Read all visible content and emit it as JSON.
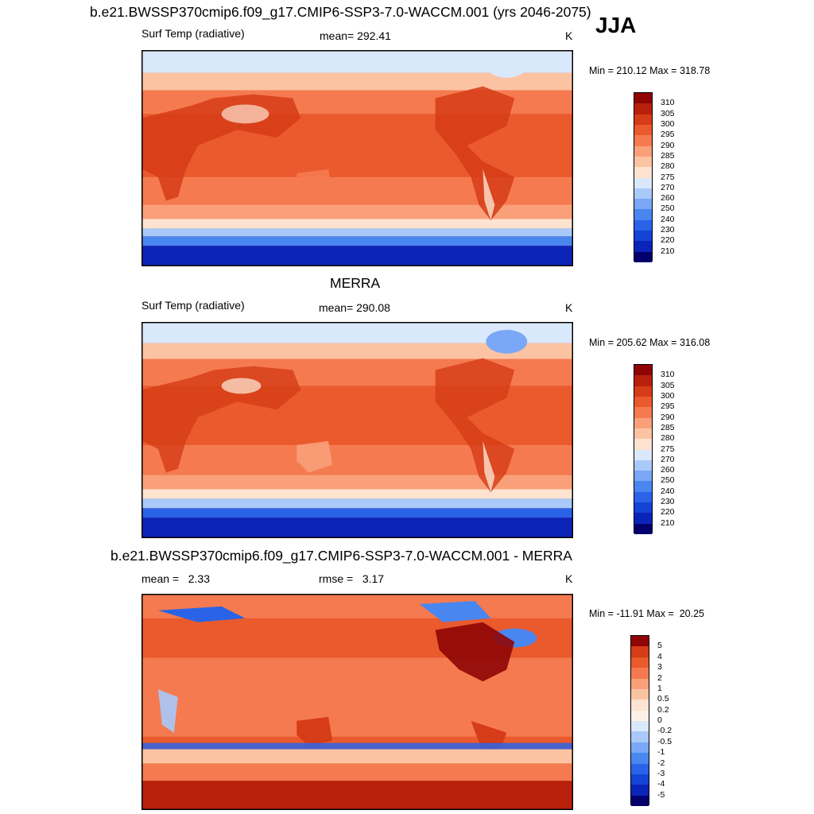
{
  "figure": {
    "season": "JJA",
    "title_top": "b.e21.BWSSP370cmip6.f09_g17.CMIP6-SSP3-7.0-WACCM.001 (yrs 2046-2075)",
    "title_mid": "MERRA",
    "title_bot": "b.e21.BWSSP370cmip6.f09_g17.CMIP6-SSP3-7.0-WACCM.001 - MERRA"
  },
  "chart_data": [
    {
      "type": "heatmap",
      "id": "model",
      "variable": "Surf Temp (radiative)",
      "mean_text": "mean= 292.41",
      "units": "K",
      "minmax_text": "Min = 210.12 Max = 318.78",
      "levels": [
        "210",
        "220",
        "230",
        "240",
        "250",
        "260",
        "270",
        "275",
        "280",
        "285",
        "290",
        "295",
        "300",
        "305",
        "310"
      ],
      "colors": [
        "#03006e",
        "#0b24b8",
        "#1443d6",
        "#2a63e8",
        "#4a86f0",
        "#7aa8f6",
        "#a9c9fa",
        "#d9e8fb",
        "#fde3d0",
        "#fcc3a3",
        "#f9a07a",
        "#f57a4f",
        "#ea5a2c",
        "#d63c17",
        "#b8200c",
        "#900404"
      ]
    },
    {
      "type": "heatmap",
      "id": "obs",
      "variable": "Surf Temp (radiative)",
      "mean_text": "mean= 290.08",
      "units": "K",
      "minmax_text": "Min = 205.62 Max = 316.08",
      "levels": [
        "210",
        "220",
        "230",
        "240",
        "250",
        "260",
        "270",
        "275",
        "280",
        "285",
        "290",
        "295",
        "300",
        "305",
        "310"
      ],
      "colors": [
        "#03006e",
        "#0b24b8",
        "#1443d6",
        "#2a63e8",
        "#4a86f0",
        "#7aa8f6",
        "#a9c9fa",
        "#d9e8fb",
        "#fde3d0",
        "#fcc3a3",
        "#f9a07a",
        "#f57a4f",
        "#ea5a2c",
        "#d63c17",
        "#b8200c",
        "#900404"
      ]
    },
    {
      "type": "heatmap",
      "id": "diff",
      "mean_text": "mean =   2.33",
      "rmse_text": "rmse =   3.17",
      "units": "K",
      "minmax_text": "Min = -11.91 Max =  20.25",
      "levels": [
        "-5",
        "-4",
        "-3",
        "-2",
        "-1",
        "-0.5",
        "-0.2",
        "0",
        "0.2",
        "0.5",
        "1",
        "2",
        "3",
        "4",
        "5"
      ],
      "colors": [
        "#03006e",
        "#0b24b8",
        "#1443d6",
        "#2a63e8",
        "#4a86f0",
        "#7aa8f6",
        "#a9c9fa",
        "#d9e8fb",
        "#fdf0e6",
        "#fde3d0",
        "#fcc3a3",
        "#f9a07a",
        "#f57a4f",
        "#ea5a2c",
        "#d63c17",
        "#900404"
      ]
    }
  ]
}
